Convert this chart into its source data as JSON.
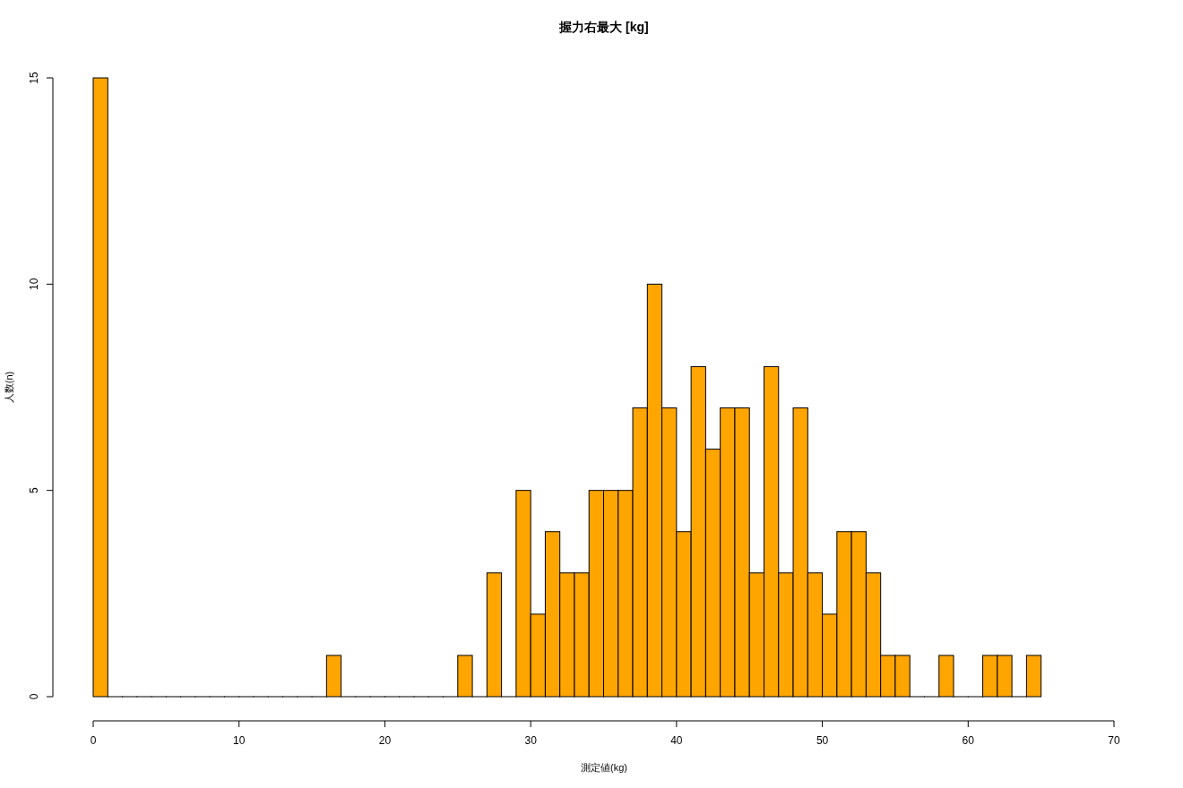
{
  "chart_data": {
    "type": "histogram",
    "title": "握力右最大 [kg]",
    "xlabel": "測定値(kg)",
    "ylabel": "人数(n)",
    "color": "#ffa500",
    "bins": [
      0,
      1,
      2,
      3,
      4,
      5,
      6,
      7,
      8,
      9,
      10,
      11,
      12,
      13,
      14,
      15,
      16,
      17,
      18,
      19,
      20,
      21,
      22,
      23,
      24,
      25,
      26,
      27,
      28,
      29,
      30,
      31,
      32,
      33,
      34,
      35,
      36,
      37,
      38,
      39,
      40,
      41,
      42,
      43,
      44,
      45,
      46,
      47,
      48,
      49,
      50,
      51,
      52,
      53,
      54,
      55,
      56,
      57,
      58,
      59,
      60,
      61,
      62,
      63,
      64,
      65
    ],
    "values": [
      15,
      0,
      0,
      0,
      0,
      0,
      0,
      0,
      0,
      0,
      0,
      0,
      0,
      0,
      0,
      0,
      1,
      0,
      0,
      0,
      0,
      0,
      0,
      0,
      0,
      1,
      0,
      3,
      0,
      5,
      2,
      4,
      3,
      3,
      5,
      5,
      5,
      7,
      10,
      7,
      4,
      8,
      6,
      7,
      7,
      3,
      8,
      3,
      7,
      3,
      2,
      4,
      4,
      3,
      1,
      1,
      0,
      0,
      1,
      0,
      0,
      1,
      1,
      0,
      1
    ],
    "xlim": [
      0,
      70
    ],
    "xticks": [
      0,
      10,
      20,
      30,
      40,
      50,
      60,
      70
    ],
    "ylim": [
      0,
      15
    ],
    "yticks": [
      0,
      5,
      10,
      15
    ],
    "grid": false
  }
}
